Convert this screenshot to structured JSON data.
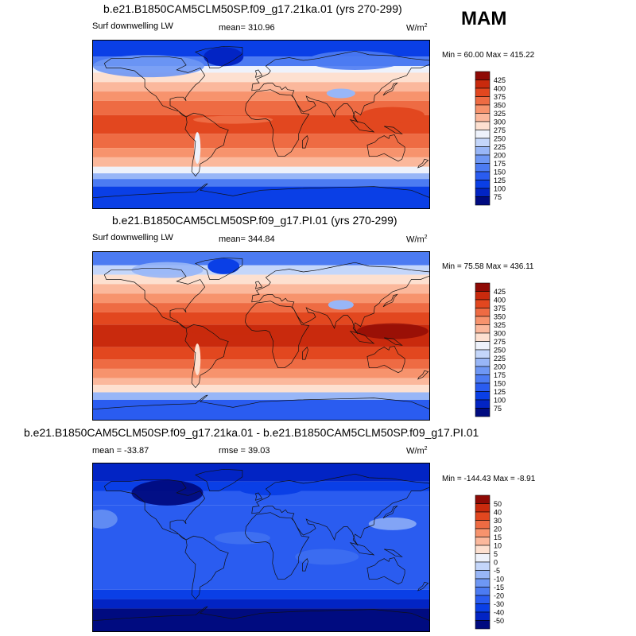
{
  "season": "MAM",
  "panels": [
    {
      "title": "b.e21.B1850CAM5CLM50SP.f09_g17.21ka.01 (yrs 270-299)",
      "left_label": "Surf downwelling LW",
      "center_label": "mean= 310.96",
      "units": "W/m",
      "units_sup": "2",
      "minmax": "Min =  60.00 Max = 415.22"
    },
    {
      "title": "b.e21.B1850CAM5CLM50SP.f09_g17.PI.01 (yrs 270-299)",
      "left_label": "Surf downwelling LW",
      "center_label": "mean= 344.84",
      "units": "W/m",
      "units_sup": "2",
      "minmax": "Min =  75.58 Max = 436.11"
    },
    {
      "title": "b.e21.B1850CAM5CLM50SP.f09_g17.21ka.01 - b.e21.B1850CAM5CLM50SP.f09_g17.PI.01",
      "left_label": "mean = -33.87",
      "center_label": "rmse =  39.03",
      "units": "W/m",
      "units_sup": "2",
      "minmax": "Min = -144.43 Max =  -8.91"
    }
  ],
  "chart_data": [
    {
      "type": "heatmap",
      "title": "b.e21.B1850CAM5CLM50SP.f09_g17.21ka.01 (yrs 270-299)",
      "variable": "Surf downwelling LW",
      "units": "W/m2",
      "mean": 310.96,
      "min": 60.0,
      "max": 415.22,
      "projection": "global cylindrical equidistant",
      "colorbar_levels": [
        75,
        100,
        125,
        150,
        175,
        200,
        225,
        250,
        275,
        300,
        325,
        350,
        375,
        400,
        425
      ],
      "colorbar_colors": [
        "#000b80",
        "#0224c4",
        "#0a3fe6",
        "#2a5cf0",
        "#4c7bf2",
        "#6e97f4",
        "#98b6f7",
        "#c4d6fa",
        "#eef2fb",
        "#fde0d0",
        "#fbb89c",
        "#f7936d",
        "#ee6b43",
        "#e2471f",
        "#c92a0d",
        "#8f0a05"
      ]
    },
    {
      "type": "heatmap",
      "title": "b.e21.B1850CAM5CLM50SP.f09_g17.PI.01 (yrs 270-299)",
      "variable": "Surf downwelling LW",
      "units": "W/m2",
      "mean": 344.84,
      "min": 75.58,
      "max": 436.11,
      "projection": "global cylindrical equidistant",
      "colorbar_levels": [
        75,
        100,
        125,
        150,
        175,
        200,
        225,
        250,
        275,
        300,
        325,
        350,
        375,
        400,
        425
      ],
      "colorbar_colors": [
        "#000b80",
        "#0224c4",
        "#0a3fe6",
        "#2a5cf0",
        "#4c7bf2",
        "#6e97f4",
        "#98b6f7",
        "#c4d6fa",
        "#eef2fb",
        "#fde0d0",
        "#fbb89c",
        "#f7936d",
        "#ee6b43",
        "#e2471f",
        "#c92a0d",
        "#8f0a05"
      ]
    },
    {
      "type": "heatmap",
      "title": "b.e21.B1850CAM5CLM50SP.f09_g17.21ka.01 - b.e21.B1850CAM5CLM50SP.f09_g17.PI.01",
      "units": "W/m2",
      "mean": -33.87,
      "rmse": 39.03,
      "min": -144.43,
      "max": -8.91,
      "projection": "global cylindrical equidistant",
      "colorbar_levels": [
        -50,
        -40,
        -30,
        -20,
        -15,
        -10,
        -5,
        0,
        5,
        10,
        15,
        20,
        30,
        40,
        50
      ],
      "colorbar_colors": [
        "#000b80",
        "#0224c4",
        "#0a3fe6",
        "#2a5cf0",
        "#4c7bf2",
        "#6e97f4",
        "#98b6f7",
        "#c4d6fa",
        "#eef2fb",
        "#fde0d0",
        "#fbb89c",
        "#f7936d",
        "#ee6b43",
        "#e2471f",
        "#c92a0d",
        "#8f0a05"
      ]
    }
  ]
}
